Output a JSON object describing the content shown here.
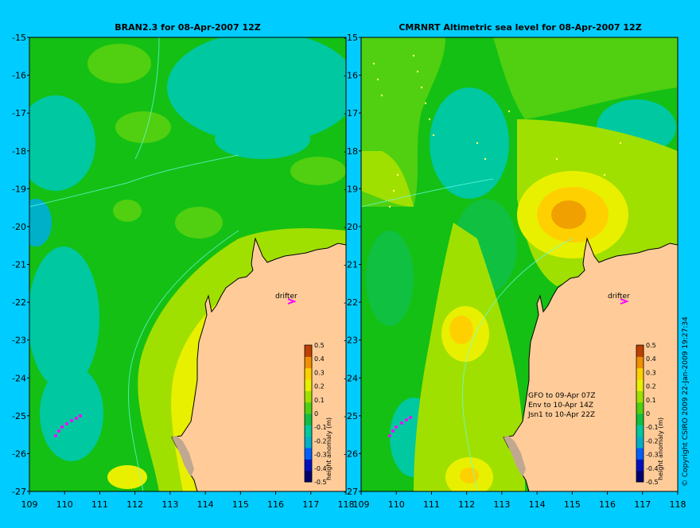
{
  "panels": {
    "left": {
      "title": "BRAN2.3 for 08-Apr-2007 12Z"
    },
    "right": {
      "title": "CMRNRT Altimetric sea level  for 08-Apr-2007 12Z"
    }
  },
  "axes": {
    "lon_ticks": [
      "109",
      "110",
      "111",
      "112",
      "113",
      "114",
      "115",
      "116",
      "117",
      "118"
    ],
    "lat_ticks": [
      "-15",
      "-16",
      "-17",
      "-18",
      "-19",
      "-20",
      "-21",
      "-22",
      "-23",
      "-24",
      "-25",
      "-26",
      "-27"
    ]
  },
  "colorbar": {
    "label": "height anomaly (m)",
    "ticks": [
      "0.5",
      "0.4",
      "0.3",
      "0.2",
      "0.1",
      "0",
      "-0.1",
      "-0.2",
      "-0.3",
      "-0.4",
      "-0.5"
    ],
    "colors": [
      "#000070",
      "#0010c0",
      "#0060ff",
      "#00b0c8",
      "#00c8a0",
      "#10c040",
      "#50d010",
      "#a0e000",
      "#e8f000",
      "#ffd000",
      "#f09000",
      "#c04000"
    ]
  },
  "labels": {
    "drifter": "drifter",
    "satellite_notes": [
      "GFO to 09-Apr 07Z",
      "Env to 10-Apr 14Z",
      "Jsn1 to 10-Apr 22Z"
    ],
    "copyright": "© Copyright CSIRO 2009   22-Jan-2009 19:27:34"
  },
  "colors": {
    "background": "#00ccff",
    "land": "#ffcc99",
    "drifter_marker": "#ff00ff"
  }
}
